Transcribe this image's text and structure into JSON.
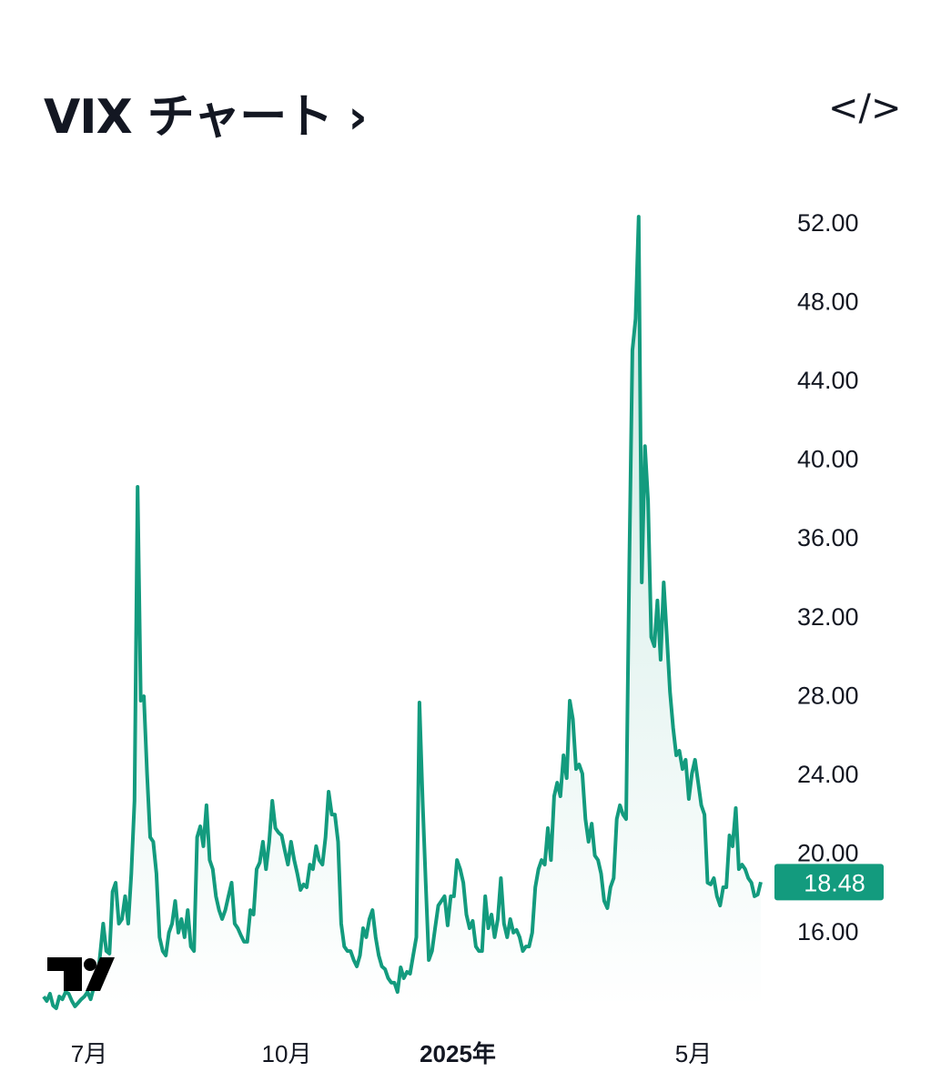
{
  "header": {
    "title": "VIX チャート",
    "chevron_icon": "chevron-right-icon",
    "embed_icon": "code-embed-icon",
    "embed_label": "</>"
  },
  "colors": {
    "line": "#139b7e",
    "price_badge": "#139b7e",
    "text": "#131722"
  },
  "chart_data": {
    "type": "area",
    "title": "VIX チャート",
    "ylim": [
      11.5,
      53
    ],
    "y_ticks": [
      "52.00",
      "48.00",
      "44.00",
      "40.00",
      "36.00",
      "32.00",
      "28.00",
      "24.00",
      "20.00",
      "16.00"
    ],
    "x_ticks": [
      {
        "label": "7月",
        "bold": false
      },
      {
        "label": "10月",
        "bold": false
      },
      {
        "label": "2025年",
        "bold": true
      },
      {
        "label": "5月",
        "bold": false
      }
    ],
    "last_value": "18.48",
    "grid": false,
    "values": [
      12.67,
      12.44,
      12.81,
      12.21,
      12.07,
      12.67,
      12.53,
      12.9,
      12.81,
      12.44,
      12.17,
      12.35,
      12.53,
      12.67,
      12.9,
      12.53,
      13.14,
      13.37,
      14.75,
      16.37,
      14.98,
      14.85,
      17.99,
      18.45,
      16.37,
      16.6,
      17.76,
      16.37,
      18.91,
      22.61,
      38.55,
      27.69,
      27.92,
      23.99,
      20.76,
      20.53,
      18.91,
      15.68,
      14.98,
      14.75,
      15.91,
      16.37,
      17.52,
      15.91,
      16.6,
      15.68,
      17.06,
      15.21,
      14.98,
      20.76,
      21.31,
      20.3,
      22.38,
      19.6,
      19.14,
      17.76,
      17.06,
      16.6,
      17.06,
      17.76,
      18.45,
      16.37,
      16.14,
      15.77,
      15.45,
      15.45,
      17.06,
      16.83,
      19.14,
      19.47,
      20.53,
      19.14,
      20.53,
      22.61,
      21.22,
      20.99,
      20.85,
      20.07,
      19.37,
      20.53,
      19.6,
      18.91,
      18.08,
      18.36,
      18.22,
      19.37,
      19.14,
      20.3,
      19.6,
      19.37,
      20.76,
      23.07,
      21.91,
      21.91,
      20.53,
      16.37,
      15.21,
      14.98,
      14.98,
      14.52,
      14.2,
      14.75,
      16.14,
      15.68,
      16.6,
      17.06,
      15.68,
      14.75,
      14.2,
      14.06,
      13.6,
      13.37,
      13.37,
      12.9,
      14.15,
      13.6,
      13.92,
      13.83,
      14.75,
      15.68,
      27.6,
      22.61,
      18.45,
      14.52,
      14.98,
      16.14,
      17.29,
      17.52,
      17.76,
      16.28,
      17.76,
      17.76,
      19.6,
      19.14,
      18.45,
      16.83,
      16.14,
      16.51,
      15.21,
      14.98,
      14.98,
      17.76,
      16.14,
      16.83,
      15.68,
      16.6,
      18.68,
      16.37,
      15.68,
      16.6,
      15.91,
      16.05,
      15.68,
      14.98,
      15.21,
      15.21,
      15.91,
      18.22,
      19.14,
      19.6,
      19.37,
      21.22,
      19.6,
      22.84,
      23.53,
      22.84,
      24.92,
      23.76,
      27.69,
      26.76,
      24.22,
      24.45,
      23.99,
      21.68,
      20.53,
      21.45,
      19.83,
      19.6,
      18.91,
      17.52,
      17.16,
      18.22,
      18.68,
      21.68,
      22.38,
      21.91,
      21.68,
      34.62,
      45.48,
      47.09,
      52.27,
      33.7,
      40.62,
      37.85,
      30.92,
      30.46,
      32.78,
      29.77,
      33.7,
      30.92,
      28.15,
      26.3,
      24.92,
      25.15,
      24.22,
      24.69,
      22.7,
      23.99,
      24.69,
      23.53,
      22.38,
      21.91,
      18.45,
      18.36,
      18.68,
      17.76,
      17.29,
      18.22,
      18.22,
      20.85,
      20.3,
      22.24,
      19.14,
      19.37,
      19.14,
      18.68,
      18.45,
      17.76,
      17.85,
      18.48
    ]
  },
  "logo": {
    "name": "TradingView",
    "icon": "tradingview-logo-icon"
  }
}
